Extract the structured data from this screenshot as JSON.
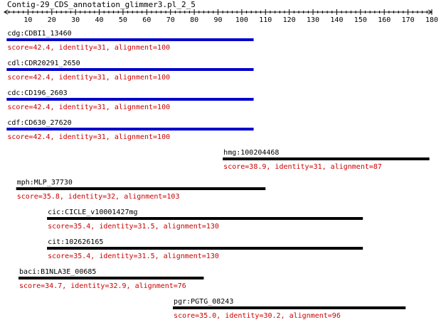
{
  "title": "Contig-29_CDS_annotation_glimmer3.pl_2_5",
  "axis": {
    "min": 0,
    "max": 180,
    "major_step": 10,
    "minor_step": 2,
    "tick_labels": [
      "10",
      "20",
      "30",
      "40",
      "50",
      "60",
      "70",
      "80",
      "90",
      "100",
      "110",
      "120",
      "130",
      "140",
      "150",
      "160",
      "170",
      "180"
    ]
  },
  "colors": {
    "axis": "#000000",
    "stats_text": "#cc0000",
    "bar_highlight": "#0000cc",
    "bar_default": "#000000"
  },
  "hits": [
    {
      "label": "cdg:CDBI1_13460",
      "stats": "score=42.4, identity=31, alignment=100",
      "start": 1,
      "end": 105,
      "color": "#0000cc"
    },
    {
      "label": "cdl:CDR20291_2650",
      "stats": "score=42.4, identity=31, alignment=100",
      "start": 1,
      "end": 105,
      "color": "#0000cc"
    },
    {
      "label": "cdc:CD196_2603",
      "stats": "score=42.4, identity=31, alignment=100",
      "start": 1,
      "end": 105,
      "color": "#0000cc"
    },
    {
      "label": "cdf:CD630_27620",
      "stats": "score=42.4, identity=31, alignment=100",
      "start": 1,
      "end": 105,
      "color": "#0000cc"
    },
    {
      "label": "hmg:100204468",
      "stats": "score=38.9, identity=31, alignment=87",
      "start": 92,
      "end": 179,
      "color": "#000000"
    },
    {
      "label": "mph:MLP_37730",
      "stats": "score=35.8, identity=32, alignment=103",
      "start": 5,
      "end": 110,
      "color": "#000000"
    },
    {
      "label": "cic:CICLE_v10001427mg",
      "stats": "score=35.4, identity=31.5, alignment=130",
      "start": 18,
      "end": 151,
      "color": "#000000"
    },
    {
      "label": "cit:102626165",
      "stats": "score=35.4, identity=31.5, alignment=130",
      "start": 18,
      "end": 151,
      "color": "#000000"
    },
    {
      "label": "baci:B1NLA3E_00685",
      "stats": "score=34.7, identity=32.9, alignment=76",
      "start": 6,
      "end": 84,
      "color": "#000000"
    },
    {
      "label": "pgr:PGTG_08243",
      "stats": "score=35.0, identity=30.2, alignment=96",
      "start": 71,
      "end": 169,
      "color": "#000000"
    }
  ]
}
